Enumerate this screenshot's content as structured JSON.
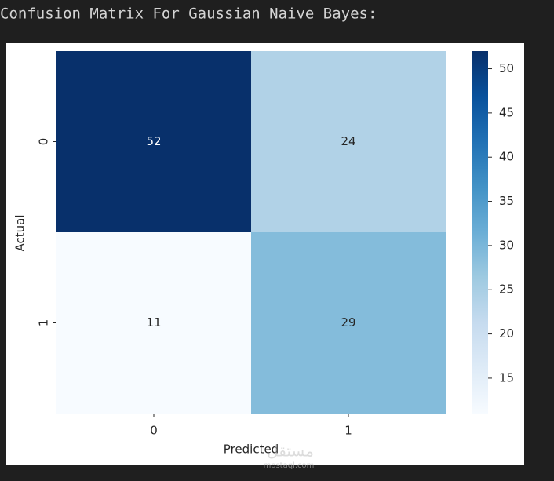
{
  "chart_data": {
    "type": "heatmap",
    "title": "Confusion Matrix For Gaussian Naive Bayes:",
    "x_label": "Predicted",
    "y_label": "Actual",
    "x_categories": [
      "0",
      "1"
    ],
    "y_categories": [
      "0",
      "1"
    ],
    "values": [
      [
        52,
        24
      ],
      [
        11,
        29
      ]
    ],
    "cmap": "Blues",
    "colorbar": {
      "lim": [
        11,
        52
      ],
      "ticks": [
        15,
        20,
        25,
        30,
        35,
        40,
        45,
        50
      ]
    },
    "watermark": {
      "text": "مستقل",
      "url": "mostaql.com"
    }
  }
}
